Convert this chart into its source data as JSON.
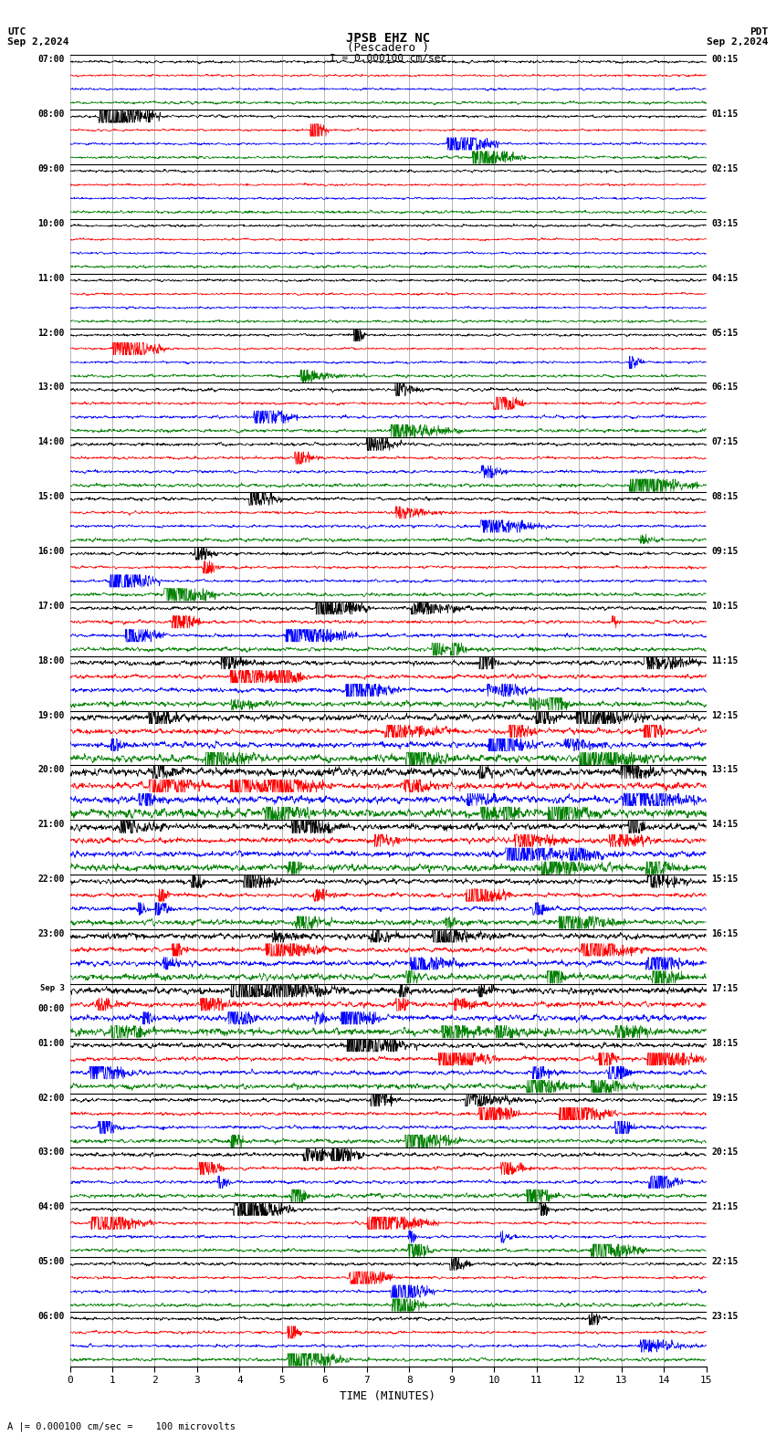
{
  "title_line1": "JPSB EHZ NC",
  "title_line2": "(Pescadero )",
  "scale_label": "I = 0.000100 cm/sec",
  "left_label_top": "UTC",
  "left_label_date": "Sep 2,2024",
  "right_label_top": "PDT",
  "right_label_date": "Sep 2,2024",
  "bottom_label": "TIME (MINUTES)",
  "bottom_note": "A |= 0.000100 cm/sec =    100 microvolts",
  "utc_labels": [
    "07:00",
    "08:00",
    "09:00",
    "10:00",
    "11:00",
    "12:00",
    "13:00",
    "14:00",
    "15:00",
    "16:00",
    "17:00",
    "18:00",
    "19:00",
    "20:00",
    "21:00",
    "22:00",
    "23:00",
    "Sep 3\n00:00",
    "01:00",
    "02:00",
    "03:00",
    "04:00",
    "05:00",
    "06:00"
  ],
  "pdt_labels": [
    "00:15",
    "01:15",
    "02:15",
    "03:15",
    "04:15",
    "05:15",
    "06:15",
    "07:15",
    "08:15",
    "09:15",
    "10:15",
    "11:15",
    "12:15",
    "13:15",
    "14:15",
    "15:15",
    "16:15",
    "17:15",
    "18:15",
    "19:15",
    "20:15",
    "21:15",
    "22:15",
    "23:15"
  ],
  "bg_color": "#ffffff",
  "trace_colors": [
    "black",
    "red",
    "blue",
    "green"
  ],
  "num_hours": 24,
  "traces_per_hour": 4,
  "time_minutes": 15,
  "xmin": 0,
  "xmax": 15,
  "xticks": [
    0,
    1,
    2,
    3,
    4,
    5,
    6,
    7,
    8,
    9,
    10,
    11,
    12,
    13,
    14,
    15
  ],
  "vgrid_color": "#999999",
  "hgrid_color": "#000000"
}
